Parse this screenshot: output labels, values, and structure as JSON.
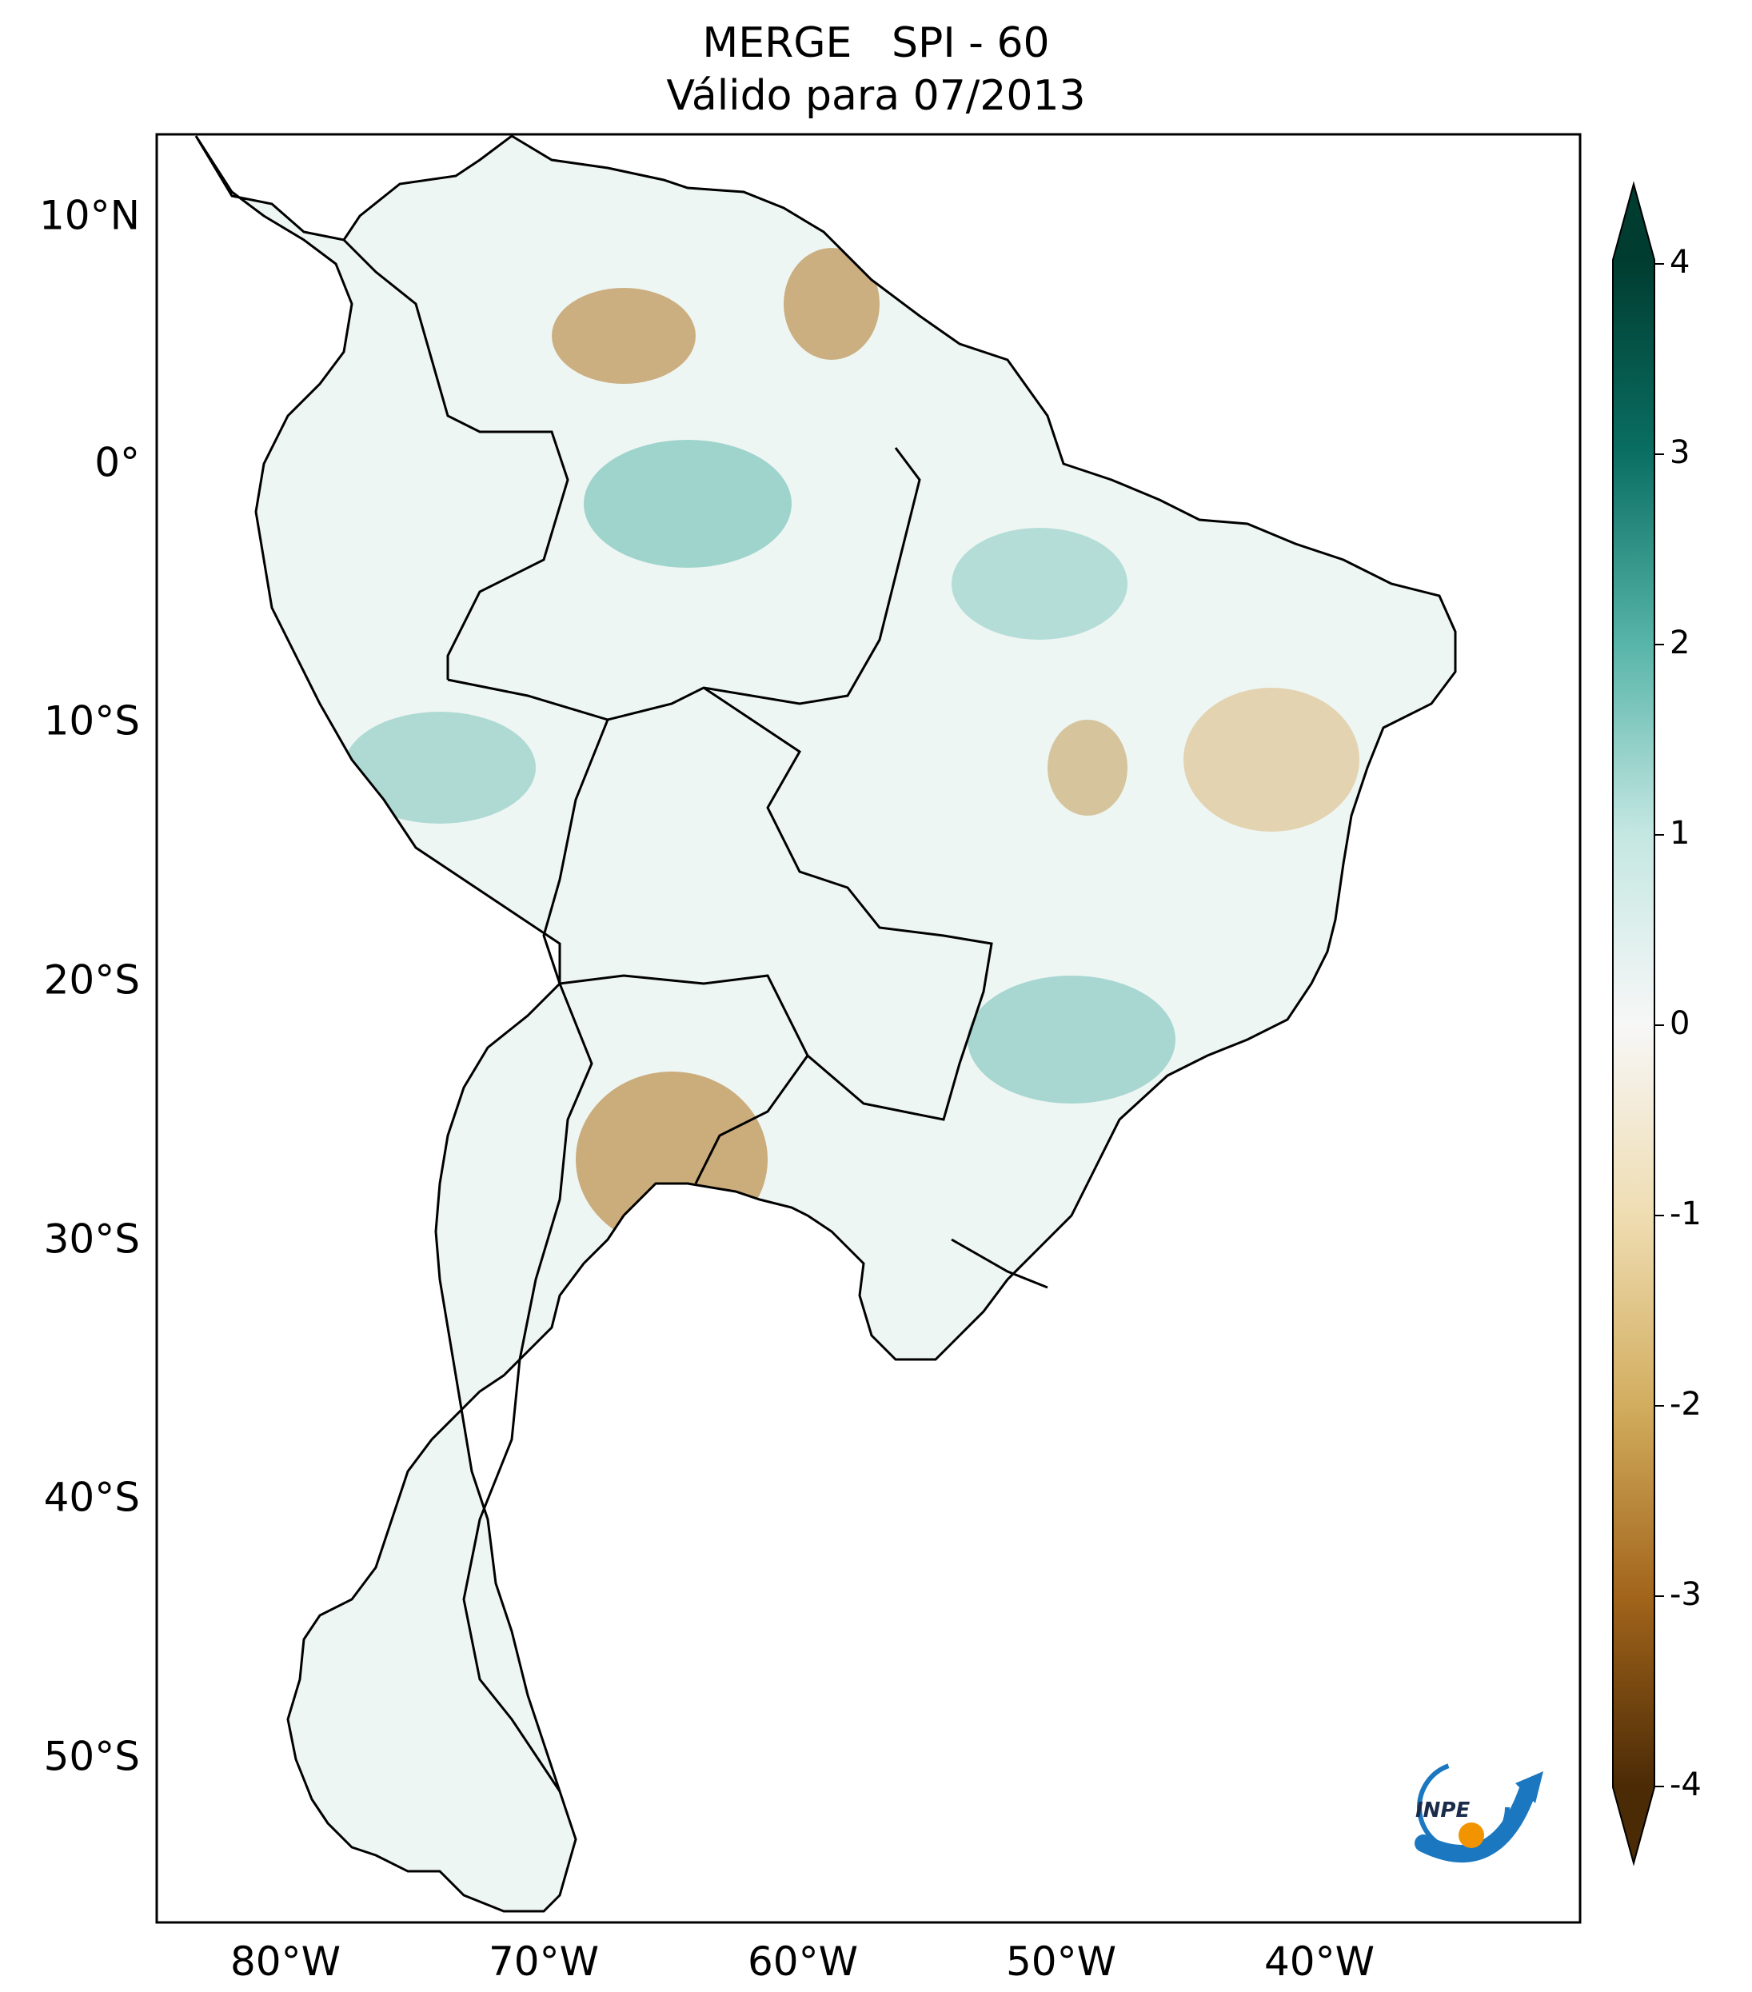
{
  "title": {
    "line1": "MERGE   SPI - 60",
    "line2": "Válido para 07/2013"
  },
  "map": {
    "lon_range": [
      -85,
      -30
    ],
    "lat_range": [
      -56,
      13
    ],
    "lat_ticks": [
      {
        "value": 10,
        "label": "10°N"
      },
      {
        "value": 0,
        "label": "0°"
      },
      {
        "value": -10,
        "label": "10°S"
      },
      {
        "value": -20,
        "label": "20°S"
      },
      {
        "value": -30,
        "label": "30°S"
      },
      {
        "value": -40,
        "label": "40°S"
      },
      {
        "value": -50,
        "label": "50°S"
      }
    ],
    "lon_ticks": [
      {
        "value": -80,
        "label": "80°W"
      },
      {
        "value": -70,
        "label": "70°W"
      },
      {
        "value": -60,
        "label": "60°W"
      },
      {
        "value": -50,
        "label": "50°W"
      },
      {
        "value": -40,
        "label": "40°W"
      }
    ]
  },
  "colorbar": {
    "range": [
      -4,
      4
    ],
    "extend": "both",
    "ticks": [
      {
        "value": 4,
        "label": "4"
      },
      {
        "value": 3,
        "label": "3"
      },
      {
        "value": 2,
        "label": "2"
      },
      {
        "value": 1,
        "label": "1"
      },
      {
        "value": 0,
        "label": "0"
      },
      {
        "value": -1,
        "label": "-1"
      },
      {
        "value": -2,
        "label": "-2"
      },
      {
        "value": -3,
        "label": "-3"
      },
      {
        "value": -4,
        "label": "-4"
      }
    ],
    "colors": {
      "max": "#013c30",
      "high": "#0a6e62",
      "mid_high": "#56b4a8",
      "low_high": "#c4e7e2",
      "zero": "#f7f7f7",
      "low_neg": "#efddb2",
      "mid_neg": "#d2ad5f",
      "high_neg": "#a2651b",
      "min": "#4b2a06"
    }
  },
  "logo": {
    "text": "INPE",
    "colors": {
      "blue": "#1b78c0",
      "orange": "#f29400"
    }
  }
}
